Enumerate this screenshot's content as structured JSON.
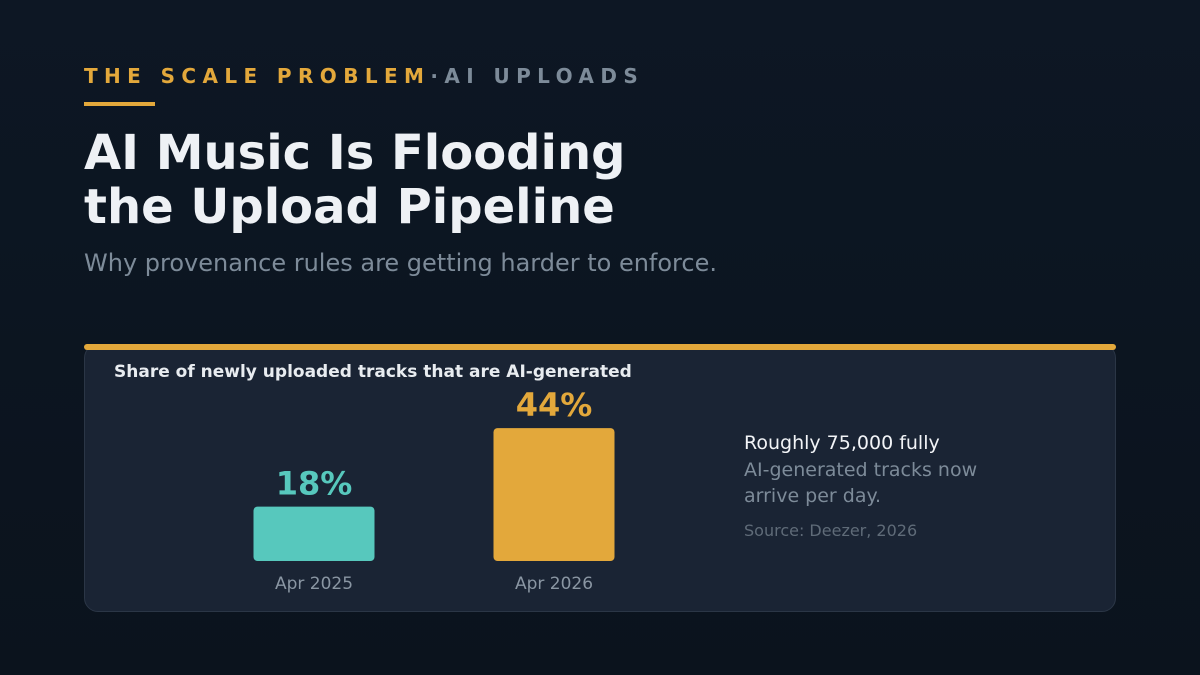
{
  "header": {
    "kicker": "THE SCALE PROBLEM",
    "separator": "·",
    "kicker_topic": "AI UPLOADS",
    "title_lines": [
      "AI Music Is Flooding",
      "the Upload Pipeline"
    ],
    "subtitle": "Why provenance rules are getting harder to enforce."
  },
  "chart_data": {
    "type": "bar",
    "title": "Share of newly uploaded tracks that are AI-generated",
    "categories": [
      "Apr 2025",
      "Apr 2026"
    ],
    "values": [
      18,
      44
    ],
    "value_labels": [
      "18%",
      "44%"
    ],
    "colors": [
      "#57c8bd",
      "#e3a83b"
    ]
  },
  "note": {
    "lead": "Roughly 75,000 fully",
    "text": "AI-generated tracks now arrive per day.",
    "source": "Source: Deezer, 2026"
  }
}
